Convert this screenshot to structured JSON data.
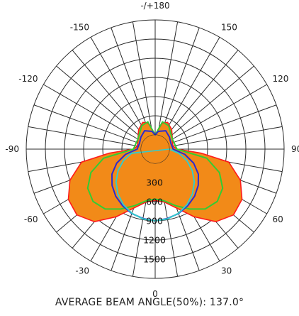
{
  "caption": "AVERAGE BEAM ANGLE(50%): 137.0°",
  "chart_data": {
    "type": "polar",
    "angle_tick_labels": [
      "0",
      "30",
      "60",
      "90",
      "120",
      "150",
      "-/+180",
      "-150",
      "-120",
      "-90",
      "-60",
      "-30"
    ],
    "radial_tick_labels": [
      "300",
      "600",
      "900",
      "1200",
      "1500"
    ],
    "radial_ticks": [
      300,
      600,
      900,
      1200,
      1500
    ],
    "radial_max": 1800,
    "radial_line_step_deg": 10,
    "series": [
      {
        "color": "#f28a18",
        "stroke": "#ff1a1a",
        "fill": true,
        "points": [
          [
            0,
            580
          ],
          [
            10,
            620
          ],
          [
            20,
            760
          ],
          [
            30,
            1000
          ],
          [
            40,
            1260
          ],
          [
            50,
            1380
          ],
          [
            60,
            1350
          ],
          [
            70,
            1200
          ],
          [
            80,
            950
          ],
          [
            85,
            500
          ],
          [
            90,
            120
          ],
          [
            100,
            60
          ],
          [
            120,
            90
          ],
          [
            140,
            180
          ],
          [
            155,
            240
          ],
          [
            165,
            200
          ],
          [
            180,
            0
          ],
          [
            -165,
            200
          ],
          [
            -155,
            240
          ],
          [
            -140,
            180
          ],
          [
            -120,
            90
          ],
          [
            -100,
            60
          ],
          [
            -90,
            120
          ],
          [
            -85,
            500
          ],
          [
            -80,
            950
          ],
          [
            -70,
            1200
          ],
          [
            -60,
            1350
          ],
          [
            -50,
            1380
          ],
          [
            -40,
            1260
          ],
          [
            -30,
            1000
          ],
          [
            -20,
            760
          ],
          [
            -10,
            620
          ],
          [
            0,
            580
          ]
        ]
      },
      {
        "color": "#33cc33",
        "fill": false,
        "points": [
          [
            0,
            560
          ],
          [
            10,
            600
          ],
          [
            20,
            720
          ],
          [
            30,
            860
          ],
          [
            40,
            1000
          ],
          [
            50,
            1050
          ],
          [
            60,
            1000
          ],
          [
            70,
            850
          ],
          [
            80,
            600
          ],
          [
            90,
            120
          ],
          [
            120,
            90
          ],
          [
            150,
            200
          ],
          [
            165,
            220
          ],
          [
            180,
            0
          ],
          [
            -165,
            220
          ],
          [
            -150,
            200
          ],
          [
            -120,
            90
          ],
          [
            -90,
            120
          ],
          [
            -80,
            600
          ],
          [
            -70,
            850
          ],
          [
            -60,
            1000
          ],
          [
            -50,
            1050
          ],
          [
            -40,
            1000
          ],
          [
            -30,
            860
          ],
          [
            -20,
            720
          ],
          [
            -10,
            600
          ],
          [
            0,
            560
          ]
        ]
      },
      {
        "color": "#2b2bd0",
        "fill": false,
        "points": [
          [
            0,
            900
          ],
          [
            10,
            880
          ],
          [
            20,
            850
          ],
          [
            30,
            800
          ],
          [
            40,
            740
          ],
          [
            50,
            660
          ],
          [
            60,
            560
          ],
          [
            70,
            420
          ],
          [
            80,
            250
          ],
          [
            90,
            60
          ],
          [
            110,
            40
          ],
          [
            130,
            70
          ],
          [
            150,
            110
          ],
          [
            170,
            60
          ],
          [
            180,
            0
          ],
          [
            -170,
            60
          ],
          [
            -150,
            110
          ],
          [
            -130,
            70
          ],
          [
            -110,
            40
          ],
          [
            -90,
            60
          ],
          [
            -80,
            250
          ],
          [
            -70,
            420
          ],
          [
            -60,
            560
          ],
          [
            -50,
            660
          ],
          [
            -40,
            740
          ],
          [
            -30,
            800
          ],
          [
            -20,
            850
          ],
          [
            -10,
            880
          ],
          [
            0,
            900
          ]
        ]
      },
      {
        "color": "#33cccc",
        "fill": false,
        "points": [
          [
            0,
            900
          ],
          [
            10,
            886
          ],
          [
            20,
            846
          ],
          [
            30,
            779
          ],
          [
            40,
            689
          ],
          [
            50,
            579
          ],
          [
            60,
            450
          ],
          [
            70,
            308
          ],
          [
            80,
            156
          ],
          [
            90,
            0
          ],
          [
            -80,
            156
          ],
          [
            -70,
            308
          ],
          [
            -60,
            450
          ],
          [
            -50,
            579
          ],
          [
            -40,
            689
          ],
          [
            -30,
            779
          ],
          [
            -20,
            846
          ],
          [
            -10,
            886
          ],
          [
            0,
            900
          ]
        ]
      }
    ]
  }
}
